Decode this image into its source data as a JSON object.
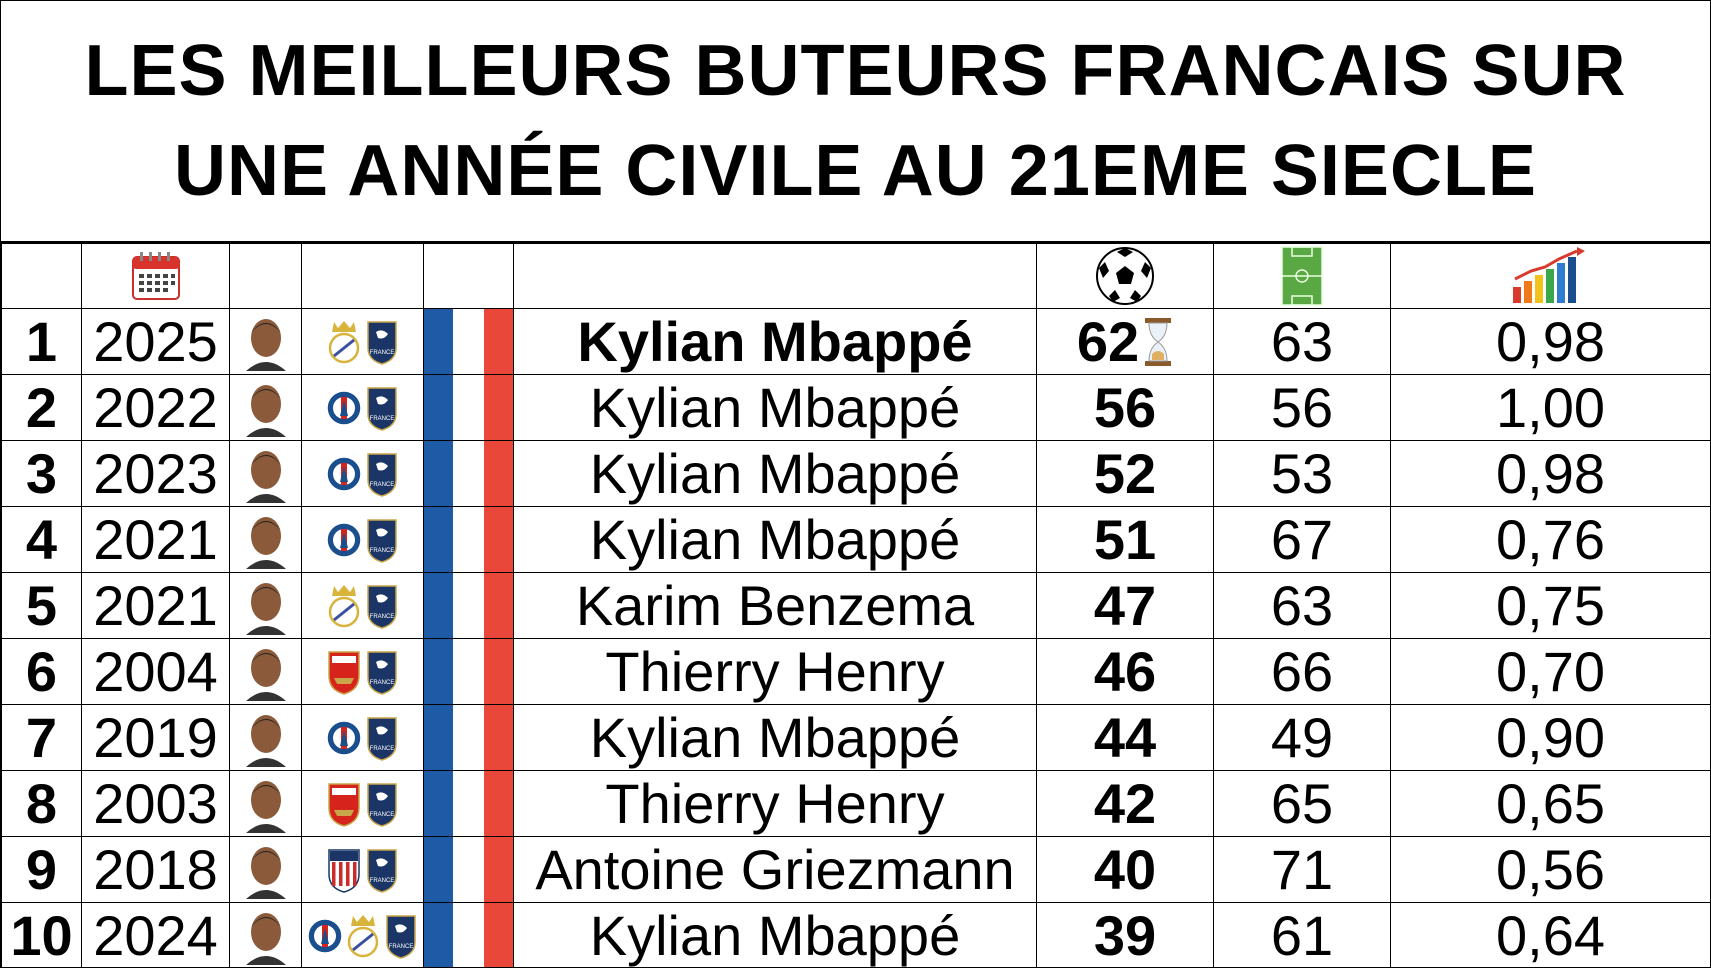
{
  "title": {
    "line1": "LES MEILLEURS BUTEURS FRANCAIS SUR",
    "line2": "UNE ANNÉE CIVILE AU 21EME SIECLE"
  },
  "header_icons": {
    "year": "calendar-icon",
    "goals": "soccer-ball-icon",
    "matches": "football-pitch-icon",
    "ratio": "growth-chart-icon"
  },
  "colors": {
    "flag_blue": "#1f5aa6",
    "flag_red": "#e8473a",
    "psg": "#1a4e8c",
    "arsenal": "#d6231b",
    "real": "#d9b43c",
    "atletico": "#cb2b2b"
  },
  "rows": [
    {
      "rank": "1",
      "year": "2025",
      "player": "Kylian Mbappé",
      "goals": "62",
      "matches": "63",
      "ratio": "0,98",
      "clubs": [
        "real-madrid",
        "france"
      ],
      "in_progress": true,
      "highlight": true
    },
    {
      "rank": "2",
      "year": "2022",
      "player": "Kylian Mbappé",
      "goals": "56",
      "matches": "56",
      "ratio": "1,00",
      "clubs": [
        "psg",
        "france"
      ]
    },
    {
      "rank": "3",
      "year": "2023",
      "player": "Kylian Mbappé",
      "goals": "52",
      "matches": "53",
      "ratio": "0,98",
      "clubs": [
        "psg",
        "france"
      ]
    },
    {
      "rank": "4",
      "year": "2021",
      "player": "Kylian Mbappé",
      "goals": "51",
      "matches": "67",
      "ratio": "0,76",
      "clubs": [
        "psg",
        "france"
      ]
    },
    {
      "rank": "5",
      "year": "2021",
      "player": "Karim Benzema",
      "goals": "47",
      "matches": "63",
      "ratio": "0,75",
      "clubs": [
        "real-madrid",
        "france"
      ]
    },
    {
      "rank": "6",
      "year": "2004",
      "player": "Thierry Henry",
      "goals": "46",
      "matches": "66",
      "ratio": "0,70",
      "clubs": [
        "arsenal",
        "france"
      ]
    },
    {
      "rank": "7",
      "year": "2019",
      "player": "Kylian Mbappé",
      "goals": "44",
      "matches": "49",
      "ratio": "0,90",
      "clubs": [
        "psg",
        "france"
      ]
    },
    {
      "rank": "8",
      "year": "2003",
      "player": "Thierry Henry",
      "goals": "42",
      "matches": "65",
      "ratio": "0,65",
      "clubs": [
        "arsenal",
        "france"
      ]
    },
    {
      "rank": "9",
      "year": "2018",
      "player": "Antoine Griezmann",
      "goals": "40",
      "matches": "71",
      "ratio": "0,56",
      "clubs": [
        "atletico",
        "france"
      ]
    },
    {
      "rank": "10",
      "year": "2024",
      "player": "Kylian Mbappé",
      "goals": "39",
      "matches": "61",
      "ratio": "0,64",
      "clubs": [
        "psg",
        "real-madrid",
        "france"
      ]
    }
  ]
}
